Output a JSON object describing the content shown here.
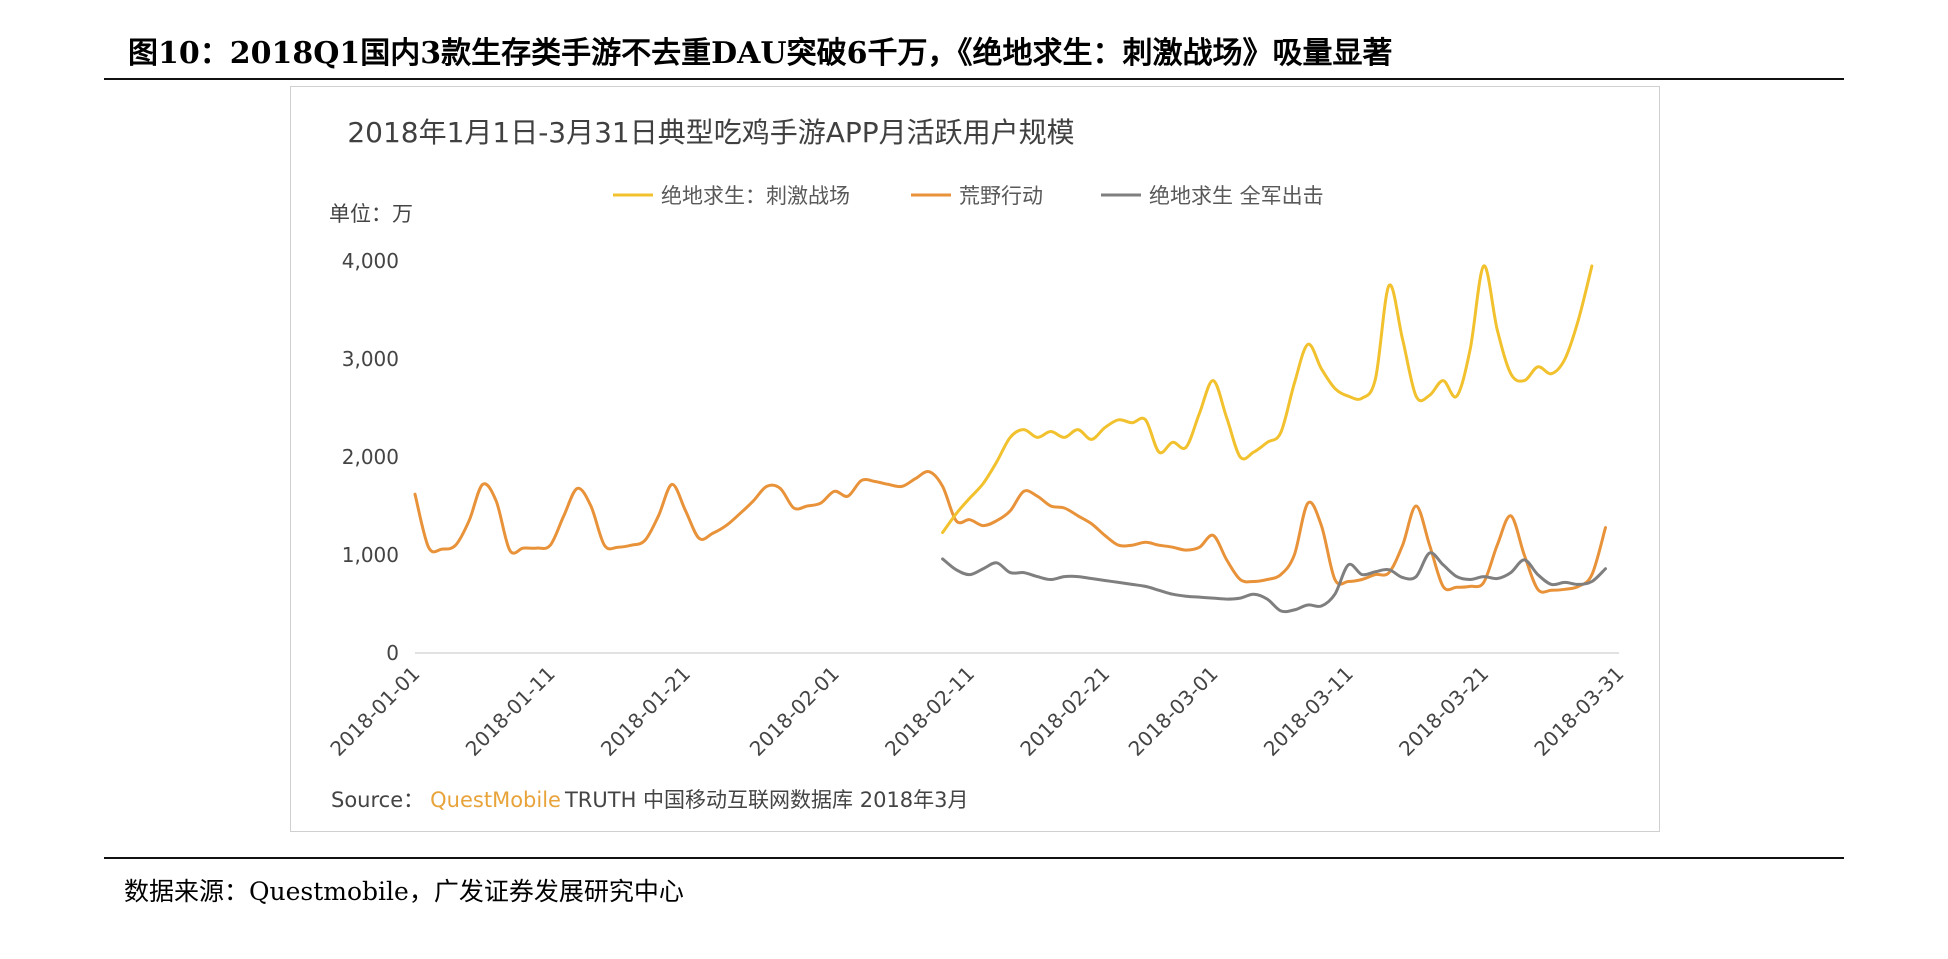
{
  "figure_title": "图10：2018Q1国内3款生存类手游不去重DAU突破6千万，《绝地求生：刺激战场》吸量显著",
  "source_note": "数据来源：Questmobile，广发证券发展研究中心",
  "chart_source": {
    "prefix": "Source：",
    "brand": "QuestMobile",
    "rest": "TRUTH 中国移动互联网数据库 2018年3月"
  },
  "colors": {
    "series_cjzc": "#F2C12E",
    "series_hyxd": "#E8923A",
    "series_qjcj": "#7F7F7F",
    "brand": "#E8A33A",
    "axis_text": "#444444"
  },
  "chart_data": {
    "type": "line",
    "title": "2018年1月1日-3月31日典型吃鸡手游APP月活跃用户规模",
    "ylabel": "单位：万",
    "ylim": [
      0,
      4000
    ],
    "yticks": [
      0,
      1000,
      2000,
      3000,
      4000
    ],
    "ytick_labels": [
      "0",
      "1,000",
      "2,000",
      "3,000",
      "4,000"
    ],
    "x_start": "2018-01-01",
    "x_end": "2018-03-31",
    "x_ticks": [
      "2018-01-01",
      "2018-01-11",
      "2018-01-21",
      "2018-02-01",
      "2018-02-11",
      "2018-02-21",
      "2018-03-01",
      "2018-03-11",
      "2018-03-21",
      "2018-03-31"
    ],
    "legend_position": "top",
    "series": [
      {
        "name": "绝地求生：刺激战场",
        "points": [
          [
            "2018-02-09",
            1230
          ],
          [
            "2018-02-10",
            1420
          ],
          [
            "2018-02-11",
            1580
          ],
          [
            "2018-02-12",
            1730
          ],
          [
            "2018-02-13",
            1950
          ],
          [
            "2018-02-14",
            2200
          ],
          [
            "2018-02-15",
            2280
          ],
          [
            "2018-02-16",
            2200
          ],
          [
            "2018-02-17",
            2260
          ],
          [
            "2018-02-18",
            2200
          ],
          [
            "2018-02-19",
            2280
          ],
          [
            "2018-02-20",
            2180
          ],
          [
            "2018-02-21",
            2300
          ],
          [
            "2018-02-22",
            2380
          ],
          [
            "2018-02-23",
            2350
          ],
          [
            "2018-02-24",
            2380
          ],
          [
            "2018-02-25",
            2050
          ],
          [
            "2018-02-26",
            2150
          ],
          [
            "2018-02-27",
            2100
          ],
          [
            "2018-02-28",
            2450
          ],
          [
            "2018-03-01",
            2780
          ],
          [
            "2018-03-02",
            2400
          ],
          [
            "2018-03-03",
            2000
          ],
          [
            "2018-03-04",
            2050
          ],
          [
            "2018-03-05",
            2150
          ],
          [
            "2018-03-06",
            2250
          ],
          [
            "2018-03-07",
            2750
          ],
          [
            "2018-03-08",
            3150
          ],
          [
            "2018-03-09",
            2900
          ],
          [
            "2018-03-10",
            2700
          ],
          [
            "2018-03-11",
            2620
          ],
          [
            "2018-03-12",
            2600
          ],
          [
            "2018-03-13",
            2800
          ],
          [
            "2018-03-14",
            3750
          ],
          [
            "2018-03-15",
            3200
          ],
          [
            "2018-03-16",
            2620
          ],
          [
            "2018-03-17",
            2630
          ],
          [
            "2018-03-18",
            2780
          ],
          [
            "2018-03-19",
            2620
          ],
          [
            "2018-03-20",
            3100
          ],
          [
            "2018-03-21",
            3950
          ],
          [
            "2018-03-22",
            3300
          ],
          [
            "2018-03-23",
            2850
          ],
          [
            "2018-03-24",
            2780
          ],
          [
            "2018-03-25",
            2920
          ],
          [
            "2018-03-26",
            2850
          ],
          [
            "2018-03-27",
            3000
          ],
          [
            "2018-03-28",
            3400
          ],
          [
            "2018-03-29",
            3950
          ]
        ]
      },
      {
        "name": "荒野行动",
        "points": [
          [
            "2018-01-01",
            1620
          ],
          [
            "2018-01-02",
            1080
          ],
          [
            "2018-01-03",
            1060
          ],
          [
            "2018-01-04",
            1100
          ],
          [
            "2018-01-05",
            1350
          ],
          [
            "2018-01-06",
            1720
          ],
          [
            "2018-01-07",
            1550
          ],
          [
            "2018-01-08",
            1050
          ],
          [
            "2018-01-09",
            1070
          ],
          [
            "2018-01-10",
            1070
          ],
          [
            "2018-01-11",
            1100
          ],
          [
            "2018-01-12",
            1400
          ],
          [
            "2018-01-13",
            1680
          ],
          [
            "2018-01-14",
            1500
          ],
          [
            "2018-01-15",
            1100
          ],
          [
            "2018-01-16",
            1080
          ],
          [
            "2018-01-17",
            1100
          ],
          [
            "2018-01-18",
            1150
          ],
          [
            "2018-01-19",
            1400
          ],
          [
            "2018-01-20",
            1720
          ],
          [
            "2018-01-21",
            1450
          ],
          [
            "2018-01-22",
            1170
          ],
          [
            "2018-01-23",
            1220
          ],
          [
            "2018-01-24",
            1300
          ],
          [
            "2018-01-25",
            1420
          ],
          [
            "2018-01-26",
            1550
          ],
          [
            "2018-01-27",
            1700
          ],
          [
            "2018-01-28",
            1680
          ],
          [
            "2018-01-29",
            1480
          ],
          [
            "2018-01-30",
            1500
          ],
          [
            "2018-01-31",
            1530
          ],
          [
            "2018-02-01",
            1650
          ],
          [
            "2018-02-02",
            1600
          ],
          [
            "2018-02-03",
            1760
          ],
          [
            "2018-02-04",
            1750
          ],
          [
            "2018-02-05",
            1720
          ],
          [
            "2018-02-06",
            1700
          ],
          [
            "2018-02-07",
            1780
          ],
          [
            "2018-02-08",
            1850
          ],
          [
            "2018-02-09",
            1700
          ],
          [
            "2018-02-10",
            1350
          ],
          [
            "2018-02-11",
            1360
          ],
          [
            "2018-02-12",
            1300
          ],
          [
            "2018-02-13",
            1350
          ],
          [
            "2018-02-14",
            1450
          ],
          [
            "2018-02-15",
            1650
          ],
          [
            "2018-02-16",
            1600
          ],
          [
            "2018-02-17",
            1500
          ],
          [
            "2018-02-18",
            1480
          ],
          [
            "2018-02-19",
            1400
          ],
          [
            "2018-02-20",
            1320
          ],
          [
            "2018-02-21",
            1200
          ],
          [
            "2018-02-22",
            1100
          ],
          [
            "2018-02-23",
            1100
          ],
          [
            "2018-02-24",
            1130
          ],
          [
            "2018-02-25",
            1100
          ],
          [
            "2018-02-26",
            1080
          ],
          [
            "2018-02-27",
            1050
          ],
          [
            "2018-02-28",
            1080
          ],
          [
            "2018-03-01",
            1200
          ],
          [
            "2018-03-02",
            950
          ],
          [
            "2018-03-03",
            750
          ],
          [
            "2018-03-04",
            730
          ],
          [
            "2018-03-05",
            750
          ],
          [
            "2018-03-06",
            800
          ],
          [
            "2018-03-07",
            1000
          ],
          [
            "2018-03-08",
            1530
          ],
          [
            "2018-03-09",
            1300
          ],
          [
            "2018-03-10",
            750
          ],
          [
            "2018-03-11",
            730
          ],
          [
            "2018-03-12",
            750
          ],
          [
            "2018-03-13",
            800
          ],
          [
            "2018-03-14",
            820
          ],
          [
            "2018-03-15",
            1100
          ],
          [
            "2018-03-16",
            1500
          ],
          [
            "2018-03-17",
            1100
          ],
          [
            "2018-03-18",
            680
          ],
          [
            "2018-03-19",
            670
          ],
          [
            "2018-03-20",
            680
          ],
          [
            "2018-03-21",
            720
          ],
          [
            "2018-03-22",
            1100
          ],
          [
            "2018-03-23",
            1400
          ],
          [
            "2018-03-24",
            1000
          ],
          [
            "2018-03-25",
            650
          ],
          [
            "2018-03-26",
            640
          ],
          [
            "2018-03-27",
            650
          ],
          [
            "2018-03-28",
            680
          ],
          [
            "2018-03-29",
            800
          ],
          [
            "2018-03-30",
            1280
          ]
        ]
      },
      {
        "name": "绝地求生 全军出击",
        "points": [
          [
            "2018-02-09",
            960
          ],
          [
            "2018-02-10",
            850
          ],
          [
            "2018-02-11",
            800
          ],
          [
            "2018-02-12",
            860
          ],
          [
            "2018-02-13",
            920
          ],
          [
            "2018-02-14",
            820
          ],
          [
            "2018-02-15",
            820
          ],
          [
            "2018-02-16",
            780
          ],
          [
            "2018-02-17",
            750
          ],
          [
            "2018-02-18",
            780
          ],
          [
            "2018-02-19",
            780
          ],
          [
            "2018-02-20",
            760
          ],
          [
            "2018-02-21",
            740
          ],
          [
            "2018-02-22",
            720
          ],
          [
            "2018-02-23",
            700
          ],
          [
            "2018-02-24",
            680
          ],
          [
            "2018-02-25",
            640
          ],
          [
            "2018-02-26",
            600
          ],
          [
            "2018-02-27",
            580
          ],
          [
            "2018-02-28",
            570
          ],
          [
            "2018-03-01",
            560
          ],
          [
            "2018-03-02",
            550
          ],
          [
            "2018-03-03",
            560
          ],
          [
            "2018-03-04",
            600
          ],
          [
            "2018-03-05",
            550
          ],
          [
            "2018-03-06",
            430
          ],
          [
            "2018-03-07",
            440
          ],
          [
            "2018-03-08",
            490
          ],
          [
            "2018-03-09",
            480
          ],
          [
            "2018-03-10",
            600
          ],
          [
            "2018-03-11",
            900
          ],
          [
            "2018-03-12",
            800
          ],
          [
            "2018-03-13",
            830
          ],
          [
            "2018-03-14",
            850
          ],
          [
            "2018-03-15",
            770
          ],
          [
            "2018-03-16",
            780
          ],
          [
            "2018-03-17",
            1020
          ],
          [
            "2018-03-18",
            900
          ],
          [
            "2018-03-19",
            780
          ],
          [
            "2018-03-20",
            750
          ],
          [
            "2018-03-21",
            780
          ],
          [
            "2018-03-22",
            760
          ],
          [
            "2018-03-23",
            820
          ],
          [
            "2018-03-24",
            950
          ],
          [
            "2018-03-25",
            800
          ],
          [
            "2018-03-26",
            700
          ],
          [
            "2018-03-27",
            720
          ],
          [
            "2018-03-28",
            700
          ],
          [
            "2018-03-29",
            730
          ],
          [
            "2018-03-30",
            860
          ]
        ]
      }
    ]
  }
}
